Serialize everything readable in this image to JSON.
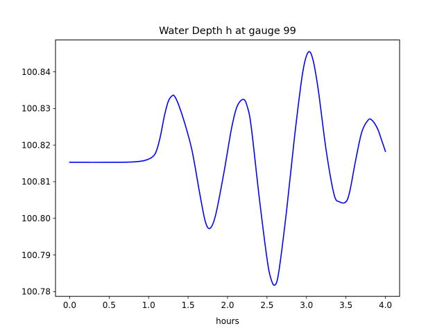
{
  "chart_data": {
    "type": "line",
    "title": "Water Depth h at gauge 99",
    "xlabel": "hours",
    "ylabel": "",
    "xlim": [
      -0.18,
      4.18
    ],
    "ylim": [
      100.7787,
      100.8487
    ],
    "xticks": [
      0.0,
      0.5,
      1.0,
      1.5,
      2.0,
      2.5,
      3.0,
      3.5,
      4.0
    ],
    "xtick_labels": [
      "0.0",
      "0.5",
      "1.0",
      "1.5",
      "2.0",
      "2.5",
      "3.0",
      "3.5",
      "4.0"
    ],
    "yticks": [
      100.78,
      100.79,
      100.8,
      100.81,
      100.82,
      100.83,
      100.84
    ],
    "ytick_labels": [
      "100.78",
      "100.79",
      "100.80",
      "100.81",
      "100.82",
      "100.83",
      "100.84"
    ],
    "grid": false,
    "series": [
      {
        "color": "#0000ff",
        "x": [
          0.0,
          0.5,
          0.8,
          0.95,
          1.05,
          1.1,
          1.15,
          1.2,
          1.25,
          1.3,
          1.33,
          1.38,
          1.45,
          1.55,
          1.65,
          1.72,
          1.78,
          1.85,
          1.95,
          2.05,
          2.12,
          2.2,
          2.25,
          2.3,
          2.4,
          2.5,
          2.55,
          2.6,
          2.65,
          2.75,
          2.85,
          2.95,
          3.02,
          3.08,
          3.15,
          3.25,
          3.35,
          3.42,
          3.5,
          3.55,
          3.62,
          3.7,
          3.78,
          3.83,
          3.9,
          3.95,
          4.0
        ],
        "y": [
          100.8153,
          100.8153,
          100.8154,
          100.8158,
          100.8168,
          100.8185,
          100.8225,
          100.828,
          100.832,
          100.8335,
          100.8333,
          100.831,
          100.8265,
          100.8185,
          100.8065,
          100.799,
          100.7973,
          100.801,
          100.812,
          100.8245,
          100.8305,
          100.8325,
          100.8305,
          100.825,
          100.806,
          100.789,
          100.7835,
          100.7818,
          100.7855,
          100.8025,
          100.8225,
          100.8395,
          100.8453,
          100.8435,
          100.835,
          100.8185,
          100.8065,
          100.8045,
          100.8045,
          100.8075,
          100.8155,
          100.8235,
          100.8268,
          100.8268,
          100.8245,
          100.8215,
          100.8183
        ]
      }
    ]
  }
}
